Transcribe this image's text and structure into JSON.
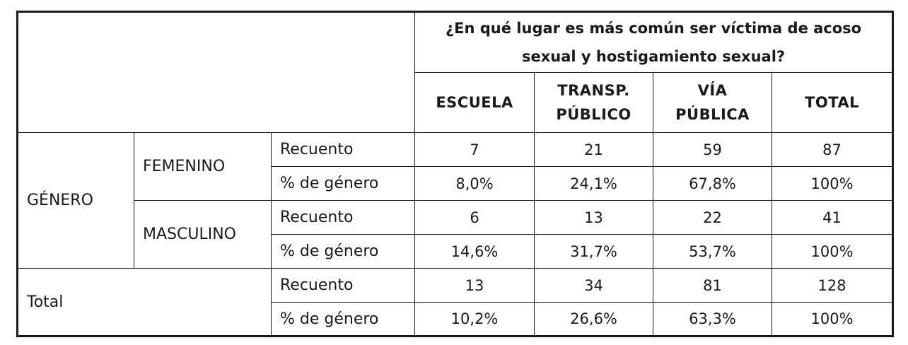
{
  "table": {
    "question": "¿En qué lugar es más común ser víctima de acoso sexual y hostigamiento sexual?",
    "columns": [
      {
        "line1": "ESCUELA",
        "line2": ""
      },
      {
        "line1": "TRANSP.",
        "line2": "PÚBLICO"
      },
      {
        "line1": "VÍA",
        "line2": "PÚBLICA"
      },
      {
        "line1": "TOTAL",
        "line2": ""
      }
    ],
    "row_group_label": "GÉNERO",
    "total_label": "Total",
    "groups": [
      {
        "name": "FEMENINO",
        "count_label": "Recuento",
        "counts": [
          "7",
          "21",
          "59",
          "87"
        ],
        "pct_label": "% de género",
        "pcts": [
          "8,0%",
          "24,1%",
          "67,8%",
          "100%"
        ]
      },
      {
        "name": "MASCULINO",
        "count_label": "Recuento",
        "counts": [
          "6",
          "13",
          "22",
          "41"
        ],
        "pct_label": "% de género",
        "pcts": [
          "14,6%",
          "31,7%",
          "53,7%",
          "100%"
        ]
      }
    ],
    "total": {
      "count_label": "Recuento",
      "counts": [
        "13",
        "34",
        "81",
        "128"
      ],
      "pct_label": "% de género",
      "pcts": [
        "10,2%",
        "26,6%",
        "63,3%",
        "100%"
      ]
    }
  }
}
